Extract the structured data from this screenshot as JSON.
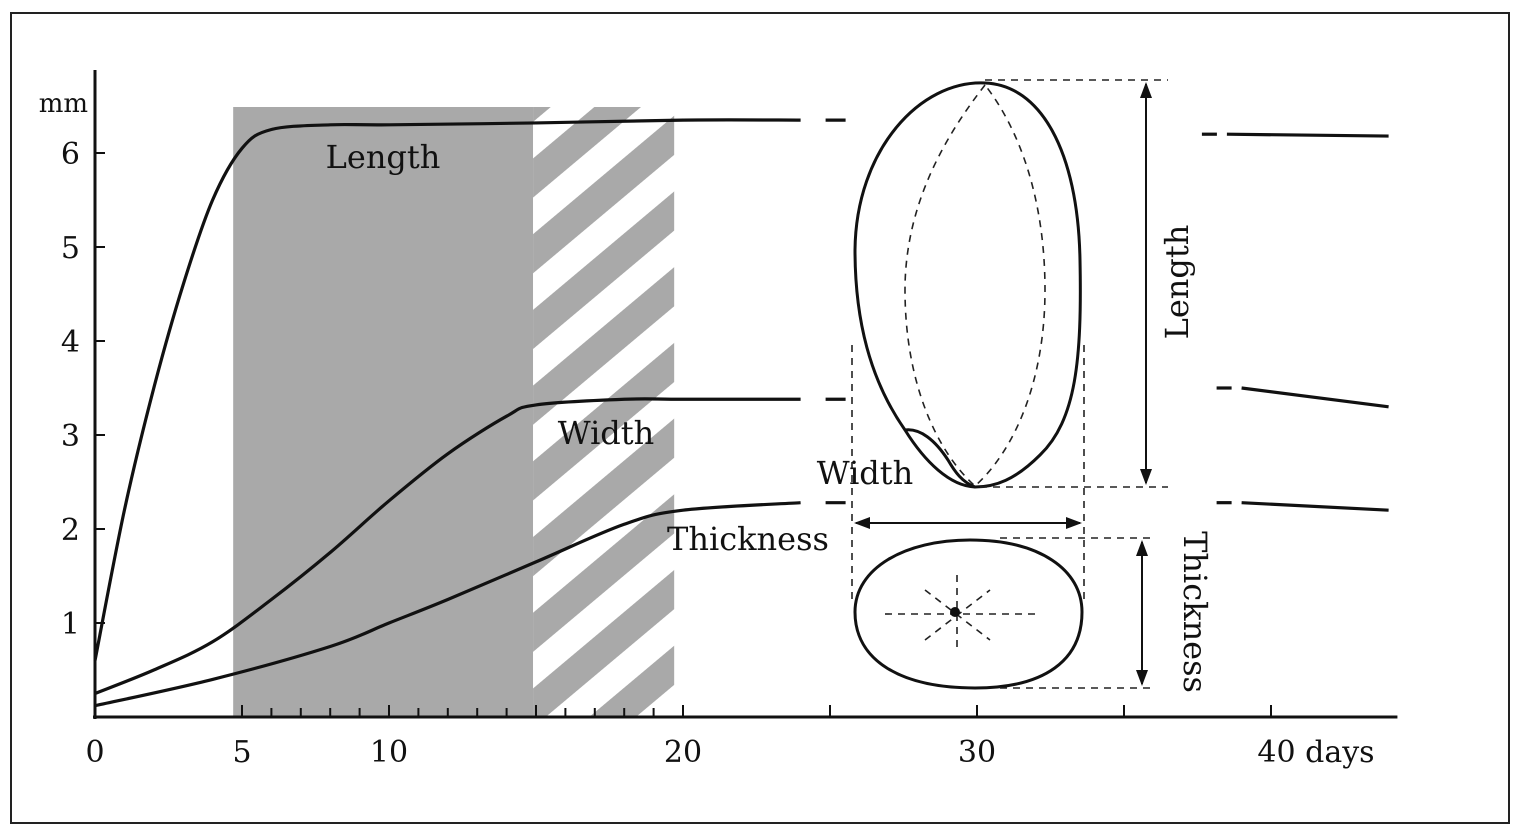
{
  "chart_data": {
    "type": "line",
    "ylabel": "mm",
    "xlabel": "days",
    "xlim": [
      0,
      45
    ],
    "ylim": [
      0,
      6.6
    ],
    "x_ticks": [
      {
        "value": 0,
        "label": "0"
      },
      {
        "value": 5,
        "label": "5"
      },
      {
        "value": 10,
        "label": "10"
      },
      {
        "value": 20,
        "label": "20"
      },
      {
        "value": 30,
        "label": "30"
      },
      {
        "value": 40,
        "label": "40 days"
      }
    ],
    "y_ticks": [
      {
        "value": 1,
        "label": "1"
      },
      {
        "value": 2,
        "label": "2"
      },
      {
        "value": 3,
        "label": "3"
      },
      {
        "value": 4,
        "label": "4"
      },
      {
        "value": 5,
        "label": "5"
      },
      {
        "value": 6,
        "label": "6"
      }
    ],
    "shaded_regions": [
      {
        "pattern": "solid-grey",
        "x_start": 4.7,
        "x_end": 14.9
      },
      {
        "pattern": "diagonal-hatch",
        "x_start": 14.9,
        "x_end": 19.7
      }
    ],
    "series": [
      {
        "name": "Length",
        "x": [
          0,
          1,
          2,
          3,
          4,
          5,
          6,
          8,
          10,
          15,
          20,
          24
        ],
        "y": [
          0.6,
          2.2,
          3.5,
          4.6,
          5.5,
          6.05,
          6.25,
          6.3,
          6.3,
          6.32,
          6.35,
          6.35
        ],
        "tail_x": [
          38.5,
          44
        ],
        "tail_y": [
          6.2,
          6.18
        ]
      },
      {
        "name": "Width",
        "x": [
          0,
          2,
          4,
          6,
          8,
          10,
          12,
          14,
          15,
          18,
          20,
          24
        ],
        "y": [
          0.25,
          0.5,
          0.8,
          1.25,
          1.75,
          2.3,
          2.8,
          3.2,
          3.32,
          3.38,
          3.38,
          3.38
        ],
        "tail_x": [
          39,
          44
        ],
        "tail_y": [
          3.5,
          3.3
        ]
      },
      {
        "name": "Thickness",
        "x": [
          0,
          4,
          8,
          10,
          12,
          15,
          18,
          20,
          24
        ],
        "y": [
          0.12,
          0.4,
          0.75,
          1.0,
          1.25,
          1.65,
          2.05,
          2.2,
          2.28
        ],
        "tail_x": [
          39,
          44
        ],
        "tail_y": [
          2.28,
          2.2
        ]
      }
    ],
    "annotations": {
      "length": "Length",
      "width": "Width",
      "thickness": "Thickness"
    },
    "grid": false,
    "legend": "none"
  }
}
